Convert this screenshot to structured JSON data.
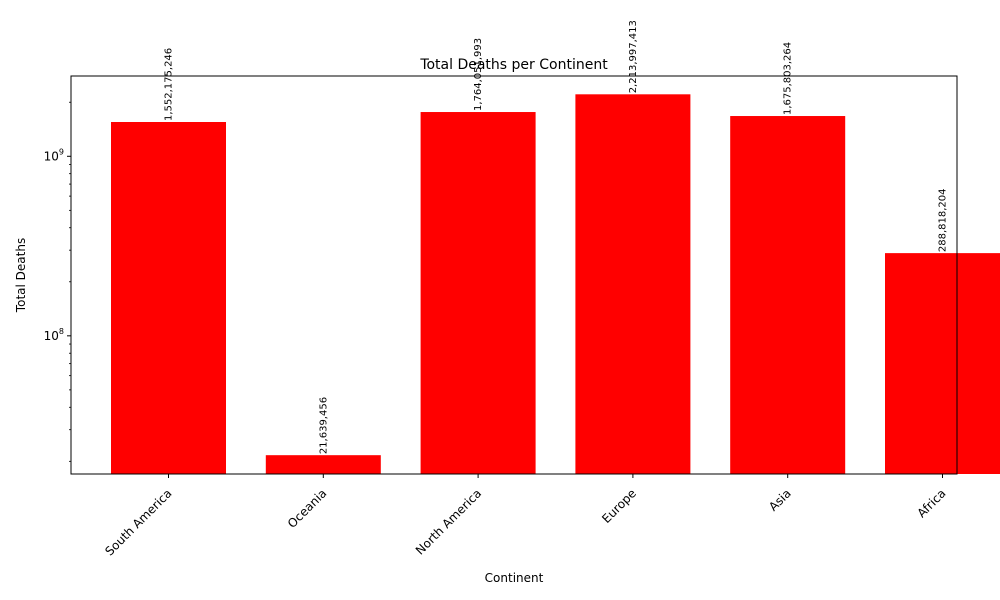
{
  "chart_data": {
    "type": "bar",
    "title": "Total Deaths per Continent",
    "xlabel": "Continent",
    "ylabel": "Total Deaths",
    "yscale": "log",
    "ylim": [
      17000000,
      2800000000
    ],
    "yticks": [
      {
        "value": 100000000,
        "base": "10",
        "exp": "8"
      },
      {
        "value": 1000000000,
        "base": "10",
        "exp": "9"
      }
    ],
    "categories": [
      "South America",
      "Oceania",
      "North America",
      "Europe",
      "Asia",
      "Africa"
    ],
    "values": [
      1552175246,
      21639456,
      1764051993,
      2213997413,
      1675803264,
      288818204
    ],
    "data_labels": [
      "1,552,175,246",
      "21,639,456",
      "1,764,051,993",
      "2,213,997,413",
      "1,675,803,264",
      "288,818,204"
    ],
    "bar_color": "#ff0000",
    "grid": false,
    "legend": "none"
  }
}
